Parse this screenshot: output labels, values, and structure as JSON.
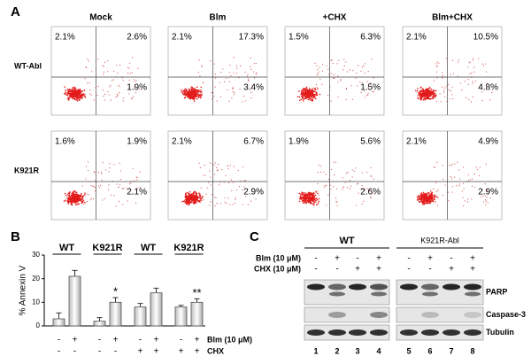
{
  "panel_labels": [
    "A",
    "B",
    "C"
  ],
  "panel_a": {
    "columns": [
      "Mock",
      "Blm",
      "+CHX",
      "Blm+CHX"
    ],
    "rows": [
      {
        "name": "WT-Abl",
        "plots": [
          [
            "2.1%",
            "2.6%",
            "1.9%"
          ],
          [
            "2.1%",
            "17.3%",
            "3.4%"
          ],
          [
            "1.5%",
            "6.3%",
            "1.5%"
          ],
          [
            "2.1%",
            "10.5%",
            "4.8%"
          ]
        ]
      },
      {
        "name": "K921R",
        "plots": [
          [
            "1.6%",
            "1.9%",
            "2.1%"
          ],
          [
            "2.1%",
            "6.7%",
            "2.9%"
          ],
          [
            "1.9%",
            "5.6%",
            "2.6%"
          ],
          [
            "2.1%",
            "4.9%",
            "2.9%"
          ]
        ]
      }
    ]
  },
  "chart_data": {
    "type": "bar",
    "ylabel": "% Annexin V",
    "ylim": [
      0,
      30
    ],
    "yticks": [
      0,
      10,
      20,
      30
    ],
    "values": [
      3,
      21,
      2,
      10,
      8,
      14,
      8,
      10
    ],
    "errors": [
      2.5,
      2.5,
      1.5,
      2,
      1.5,
      2,
      0.7,
      1.5
    ],
    "color": "#f2f2f2",
    "group_labels": [
      "WT",
      "K921R",
      "WT",
      "K921R"
    ],
    "significance": [
      null,
      null,
      null,
      "*",
      null,
      null,
      null,
      "**"
    ],
    "conditions": [
      {
        "name": "Blm (10 μM)",
        "signs": [
          "-",
          "+",
          "-",
          "+",
          "-",
          "+",
          "-",
          "+"
        ]
      },
      {
        "name": "CHX",
        "signs": [
          "-",
          "-",
          "-",
          "-",
          "+",
          "+",
          "+",
          "+"
        ]
      }
    ]
  },
  "panel_c": {
    "groups": [
      "WT",
      "K921R-Abl"
    ],
    "conditions": [
      {
        "name": "Blm (10 μM)",
        "signs": [
          "-",
          "+",
          "-",
          "+",
          "-",
          "+",
          "-",
          "+"
        ]
      },
      {
        "name": "CHX (10 μM)",
        "signs": [
          "-",
          "-",
          "+",
          "+",
          "-",
          "-",
          "+",
          "+"
        ]
      }
    ],
    "bands": [
      "PARP",
      "Caspase-3",
      "Tubulin"
    ],
    "lanes": [
      1,
      2,
      3,
      4,
      5,
      6,
      7,
      8
    ]
  }
}
